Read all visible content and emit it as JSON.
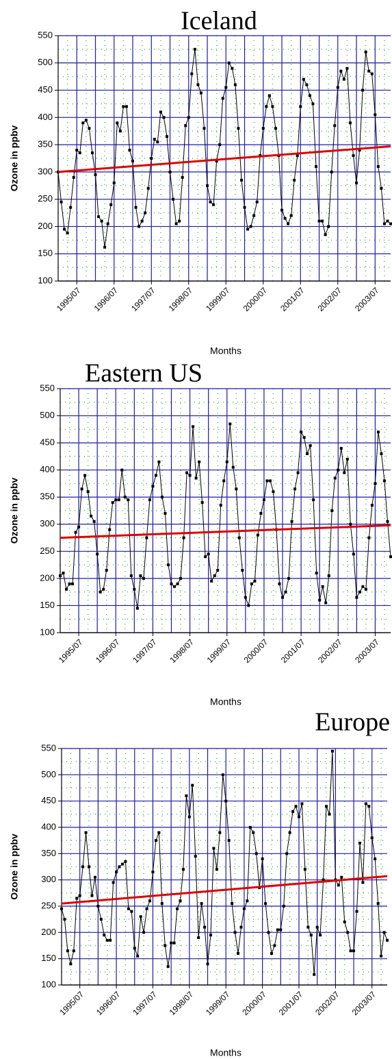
{
  "chart_data": [
    {
      "type": "line",
      "title": "Iceland",
      "x_label": "Months",
      "y_label": "Ozone in ppbv",
      "x": [
        "1995/01",
        "1995/02",
        "1995/03",
        "1995/04",
        "1995/05",
        "1995/06",
        "1995/07",
        "1995/08",
        "1995/09",
        "1995/10",
        "1995/11",
        "1995/12",
        "1996/01",
        "1996/02",
        "1996/03",
        "1996/04",
        "1996/05",
        "1996/06",
        "1996/07",
        "1996/08",
        "1996/09",
        "1996/10",
        "1996/11",
        "1996/12",
        "1997/01",
        "1997/02",
        "1997/03",
        "1997/04",
        "1997/05",
        "1997/06",
        "1997/07",
        "1997/08",
        "1997/09",
        "1997/10",
        "1997/11",
        "1997/12",
        "1998/01",
        "1998/02",
        "1998/03",
        "1998/04",
        "1998/05",
        "1998/06",
        "1998/07",
        "1998/08",
        "1998/09",
        "1998/10",
        "1998/11",
        "1998/12",
        "1999/01",
        "1999/02",
        "1999/03",
        "1999/04",
        "1999/05",
        "1999/06",
        "1999/07",
        "1999/08",
        "1999/09",
        "1999/10",
        "1999/11",
        "1999/12",
        "2000/01",
        "2000/02",
        "2000/03",
        "2000/04",
        "2000/05",
        "2000/06",
        "2000/07",
        "2000/08",
        "2000/09",
        "2000/10",
        "2000/11",
        "2000/12",
        "2001/01",
        "2001/02",
        "2001/03",
        "2001/04",
        "2001/05",
        "2001/06",
        "2001/07",
        "2001/08",
        "2001/09",
        "2001/10",
        "2001/11",
        "2001/12",
        "2002/01",
        "2002/02",
        "2002/03",
        "2002/04",
        "2002/05",
        "2002/06",
        "2002/07",
        "2002/08",
        "2002/09",
        "2002/10",
        "2002/11",
        "2002/12",
        "2003/01",
        "2003/02",
        "2003/03",
        "2003/04",
        "2003/05",
        "2003/06",
        "2003/07",
        "2003/08",
        "2003/09",
        "2003/10",
        "2003/11",
        "2003/12"
      ],
      "values": [
        300,
        245,
        195,
        188,
        235,
        290,
        340,
        335,
        390,
        395,
        380,
        335,
        295,
        218,
        210,
        162,
        205,
        240,
        280,
        390,
        375,
        420,
        420,
        340,
        320,
        235,
        200,
        210,
        225,
        270,
        325,
        360,
        355,
        410,
        400,
        365,
        300,
        250,
        205,
        210,
        290,
        385,
        400,
        480,
        525,
        460,
        445,
        380,
        275,
        245,
        240,
        320,
        350,
        435,
        455,
        500,
        490,
        460,
        380,
        285,
        235,
        195,
        200,
        220,
        245,
        330,
        380,
        420,
        440,
        420,
        380,
        330,
        230,
        215,
        205,
        220,
        285,
        330,
        420,
        470,
        460,
        440,
        425,
        310,
        210,
        210,
        185,
        200,
        300,
        385,
        455,
        485,
        470,
        490,
        390,
        330,
        280,
        340,
        450,
        520,
        485,
        480,
        405,
        310,
        270,
        205,
        210,
        205
      ],
      "color": "#000000",
      "trend": {
        "x": [
          "1995/01",
          "2003/12"
        ],
        "values": [
          300,
          347
        ],
        "color": "#e00000"
      },
      "xlim": [
        "1995/01",
        "2003/12"
      ],
      "xticks": [
        "1995/07",
        "1996/07",
        "1997/07",
        "1998/07",
        "1999/07",
        "2000/07",
        "2001/07",
        "2002/07",
        "2003/07"
      ],
      "ylim": [
        100,
        550
      ],
      "yticks": [
        100,
        150,
        200,
        250,
        300,
        350,
        400,
        450,
        500,
        550
      ],
      "grid": true
    },
    {
      "type": "line",
      "title": "Eastern US",
      "x_label": "Months",
      "y_label": "Ozone in ppbv",
      "x": [
        "1995/01",
        "1995/02",
        "1995/03",
        "1995/04",
        "1995/05",
        "1995/06",
        "1995/07",
        "1995/08",
        "1995/09",
        "1995/10",
        "1995/11",
        "1995/12",
        "1996/01",
        "1996/02",
        "1996/03",
        "1996/04",
        "1996/05",
        "1996/06",
        "1996/07",
        "1996/08",
        "1996/09",
        "1996/10",
        "1996/11",
        "1996/12",
        "1997/01",
        "1997/02",
        "1997/03",
        "1997/04",
        "1997/05",
        "1997/06",
        "1997/07",
        "1997/08",
        "1997/09",
        "1997/10",
        "1997/11",
        "1997/12",
        "1998/01",
        "1998/02",
        "1998/03",
        "1998/04",
        "1998/05",
        "1998/06",
        "1998/07",
        "1998/08",
        "1998/09",
        "1998/10",
        "1998/11",
        "1998/12",
        "1999/01",
        "1999/02",
        "1999/03",
        "1999/04",
        "1999/05",
        "1999/06",
        "1999/07",
        "1999/08",
        "1999/09",
        "1999/10",
        "1999/11",
        "1999/12",
        "2000/01",
        "2000/02",
        "2000/03",
        "2000/04",
        "2000/05",
        "2000/06",
        "2000/07",
        "2000/08",
        "2000/09",
        "2000/10",
        "2000/11",
        "2000/12",
        "2001/01",
        "2001/02",
        "2001/03",
        "2001/04",
        "2001/05",
        "2001/06",
        "2001/07",
        "2001/08",
        "2001/09",
        "2001/10",
        "2001/11",
        "2001/12",
        "2002/01",
        "2002/02",
        "2002/03",
        "2002/04",
        "2002/05",
        "2002/06",
        "2002/07",
        "2002/08",
        "2002/09",
        "2002/10",
        "2002/11",
        "2002/12",
        "2003/01",
        "2003/02",
        "2003/03",
        "2003/04",
        "2003/05",
        "2003/06",
        "2003/07",
        "2003/08",
        "2003/09",
        "2003/10",
        "2003/11",
        "2003/12"
      ],
      "values": [
        205,
        210,
        180,
        190,
        190,
        285,
        295,
        365,
        390,
        360,
        315,
        305,
        245,
        175,
        180,
        215,
        290,
        340,
        345,
        345,
        400,
        350,
        345,
        205,
        180,
        145,
        205,
        200,
        275,
        345,
        370,
        390,
        415,
        350,
        320,
        225,
        190,
        185,
        190,
        200,
        275,
        395,
        390,
        480,
        385,
        415,
        340,
        240,
        245,
        195,
        205,
        215,
        335,
        380,
        415,
        485,
        405,
        365,
        275,
        215,
        165,
        150,
        190,
        195,
        280,
        320,
        345,
        380,
        380,
        360,
        290,
        190,
        165,
        175,
        200,
        305,
        365,
        395,
        470,
        460,
        430,
        445,
        345,
        210,
        160,
        185,
        155,
        205,
        325,
        385,
        400,
        440,
        395,
        420,
        300,
        245,
        165,
        175,
        185,
        180,
        275,
        335,
        375,
        470,
        430,
        380,
        305,
        240
      ],
      "color": "#000000",
      "trend": {
        "x": [
          "1995/01",
          "2003/12"
        ],
        "values": [
          275,
          298
        ],
        "color": "#e00000"
      },
      "xlim": [
        "1995/01",
        "2003/12"
      ],
      "xticks": [
        "1995/07",
        "1996/07",
        "1997/07",
        "1998/07",
        "1999/07",
        "2000/07",
        "2001/07",
        "2002/07",
        "2003/07"
      ],
      "ylim": [
        100,
        550
      ],
      "yticks": [
        100,
        150,
        200,
        250,
        300,
        350,
        400,
        450,
        500,
        550
      ],
      "grid": true
    },
    {
      "type": "line",
      "title": "Europe",
      "x_label": "Months",
      "y_label": "Ozone in ppbv",
      "x": [
        "1995/01",
        "1995/02",
        "1995/03",
        "1995/04",
        "1995/05",
        "1995/06",
        "1995/07",
        "1995/08",
        "1995/09",
        "1995/10",
        "1995/11",
        "1995/12",
        "1996/01",
        "1996/02",
        "1996/03",
        "1996/04",
        "1996/05",
        "1996/06",
        "1996/07",
        "1996/08",
        "1996/09",
        "1996/10",
        "1996/11",
        "1996/12",
        "1997/01",
        "1997/02",
        "1997/03",
        "1997/04",
        "1997/05",
        "1997/06",
        "1997/07",
        "1997/08",
        "1997/09",
        "1997/10",
        "1997/11",
        "1997/12",
        "1998/01",
        "1998/02",
        "1998/03",
        "1998/04",
        "1998/05",
        "1998/06",
        "1998/07",
        "1998/08",
        "1998/09",
        "1998/10",
        "1998/11",
        "1998/12",
        "1999/01",
        "1999/02",
        "1999/03",
        "1999/04",
        "1999/05",
        "1999/06",
        "1999/07",
        "1999/08",
        "1999/09",
        "1999/10",
        "1999/11",
        "1999/12",
        "2000/01",
        "2000/02",
        "2000/03",
        "2000/04",
        "2000/05",
        "2000/06",
        "2000/07",
        "2000/08",
        "2000/09",
        "2000/10",
        "2000/11",
        "2000/12",
        "2001/01",
        "2001/02",
        "2001/03",
        "2001/04",
        "2001/05",
        "2001/06",
        "2001/07",
        "2001/08",
        "2001/09",
        "2001/10",
        "2001/11",
        "2001/12",
        "2002/01",
        "2002/02",
        "2002/03",
        "2002/04",
        "2002/05",
        "2002/06",
        "2002/07",
        "2002/08",
        "2002/09",
        "2002/10",
        "2002/11",
        "2002/12",
        "2003/01",
        "2003/02",
        "2003/03",
        "2003/04",
        "2003/05",
        "2003/06",
        "2003/07",
        "2003/08",
        "2003/09",
        "2003/10",
        "2003/11",
        "2003/12"
      ],
      "values": [
        245,
        225,
        165,
        140,
        165,
        265,
        270,
        325,
        390,
        325,
        270,
        305,
        250,
        225,
        195,
        185,
        185,
        295,
        315,
        325,
        330,
        335,
        245,
        240,
        170,
        155,
        230,
        200,
        245,
        260,
        315,
        375,
        390,
        255,
        175,
        135,
        180,
        180,
        245,
        260,
        320,
        460,
        420,
        480,
        345,
        190,
        255,
        210,
        140,
        195,
        360,
        320,
        390,
        500,
        450,
        375,
        255,
        200,
        160,
        210,
        245,
        260,
        400,
        390,
        350,
        285,
        340,
        255,
        200,
        160,
        175,
        205,
        205,
        250,
        350,
        390,
        430,
        440,
        420,
        445,
        320,
        210,
        195,
        120,
        210,
        195,
        300,
        440,
        425,
        545,
        300,
        290,
        305,
        220,
        200,
        165,
        165,
        240,
        370,
        295,
        445,
        440,
        380,
        340,
        255,
        155,
        200,
        185
      ],
      "color": "#000000",
      "trend": {
        "x": [
          "1995/01",
          "2003/12"
        ],
        "values": [
          255,
          307
        ],
        "color": "#e00000"
      },
      "xlim": [
        "1995/01",
        "2003/12"
      ],
      "xticks": [
        "1995/07",
        "1996/07",
        "1997/07",
        "1998/07",
        "1999/07",
        "2000/07",
        "2001/07",
        "2002/07",
        "2003/07"
      ],
      "ylim": [
        100,
        550
      ],
      "yticks": [
        100,
        150,
        200,
        250,
        300,
        350,
        400,
        450,
        500,
        550
      ],
      "grid": true
    }
  ]
}
